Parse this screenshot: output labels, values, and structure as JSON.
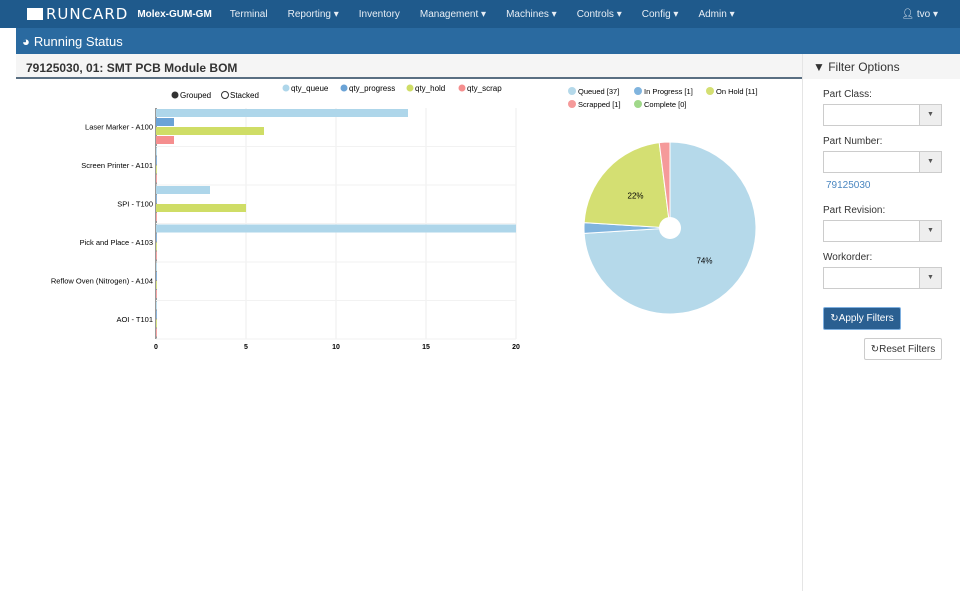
{
  "nav": {
    "logo": "RUNCARD",
    "brand": "Molex-GUM-GM",
    "items": [
      "Terminal",
      "Reporting ▾",
      "Inventory",
      "Management ▾",
      "Machines ▾",
      "Controls ▾",
      "Config ▾",
      "Admin ▾"
    ],
    "user": "tvo"
  },
  "subbar": {
    "title": "Running Status"
  },
  "page": {
    "title": "79125030, 01: SMT PCB Module BOM"
  },
  "filters": {
    "title": "Filter Options",
    "part_class": "Part Class:",
    "part_number": "Part Number:",
    "part_number_hint": "79125030",
    "part_revision": "Part Revision:",
    "workorder": "Workorder:",
    "apply": "Apply Filters",
    "reset": "Reset Filters"
  },
  "chart_data": [
    {
      "type": "bar",
      "orientation": "horizontal",
      "mode_options": [
        "Grouped",
        "Stacked"
      ],
      "mode_selected": "Grouped",
      "categories": [
        "Laser Marker - A100",
        "Screen Printer - A101",
        "SPI - T100",
        "Pick and Place - A103",
        "Reflow Oven (Nitrogen) - A104",
        "AOI - T101"
      ],
      "series": [
        {
          "name": "qty_queue",
          "color": "#aed6ea",
          "values": [
            14,
            0,
            3,
            20,
            0,
            0
          ]
        },
        {
          "name": "qty_progress",
          "color": "#6ba3d6",
          "values": [
            1,
            0,
            0,
            0,
            0,
            0
          ]
        },
        {
          "name": "qty_hold",
          "color": "#cfdd66",
          "values": [
            6,
            0,
            5,
            0,
            0,
            0
          ]
        },
        {
          "name": "qty_scrap",
          "color": "#f58e8e",
          "values": [
            1,
            0,
            0,
            0,
            0,
            0
          ]
        }
      ],
      "xlim": [
        0,
        20
      ],
      "xticks": [
        0,
        5,
        10,
        15,
        20
      ],
      "grid": true,
      "legend": "top"
    },
    {
      "type": "pie",
      "legend": "top",
      "slices": [
        {
          "label": "Queued [37]",
          "value": 37,
          "color": "#b5d9ea",
          "pct_label": "74%"
        },
        {
          "label": "In Progress [1]",
          "value": 1,
          "color": "#80b4de",
          "pct_label": ""
        },
        {
          "label": "On Hold [11]",
          "value": 11,
          "color": "#d4df72",
          "pct_label": "22%"
        },
        {
          "label": "Scrapped [1]",
          "value": 1,
          "color": "#f59a9a",
          "pct_label": ""
        },
        {
          "label": "Complete [0]",
          "value": 0,
          "color": "#a0d88a",
          "pct_label": ""
        }
      ]
    }
  ]
}
